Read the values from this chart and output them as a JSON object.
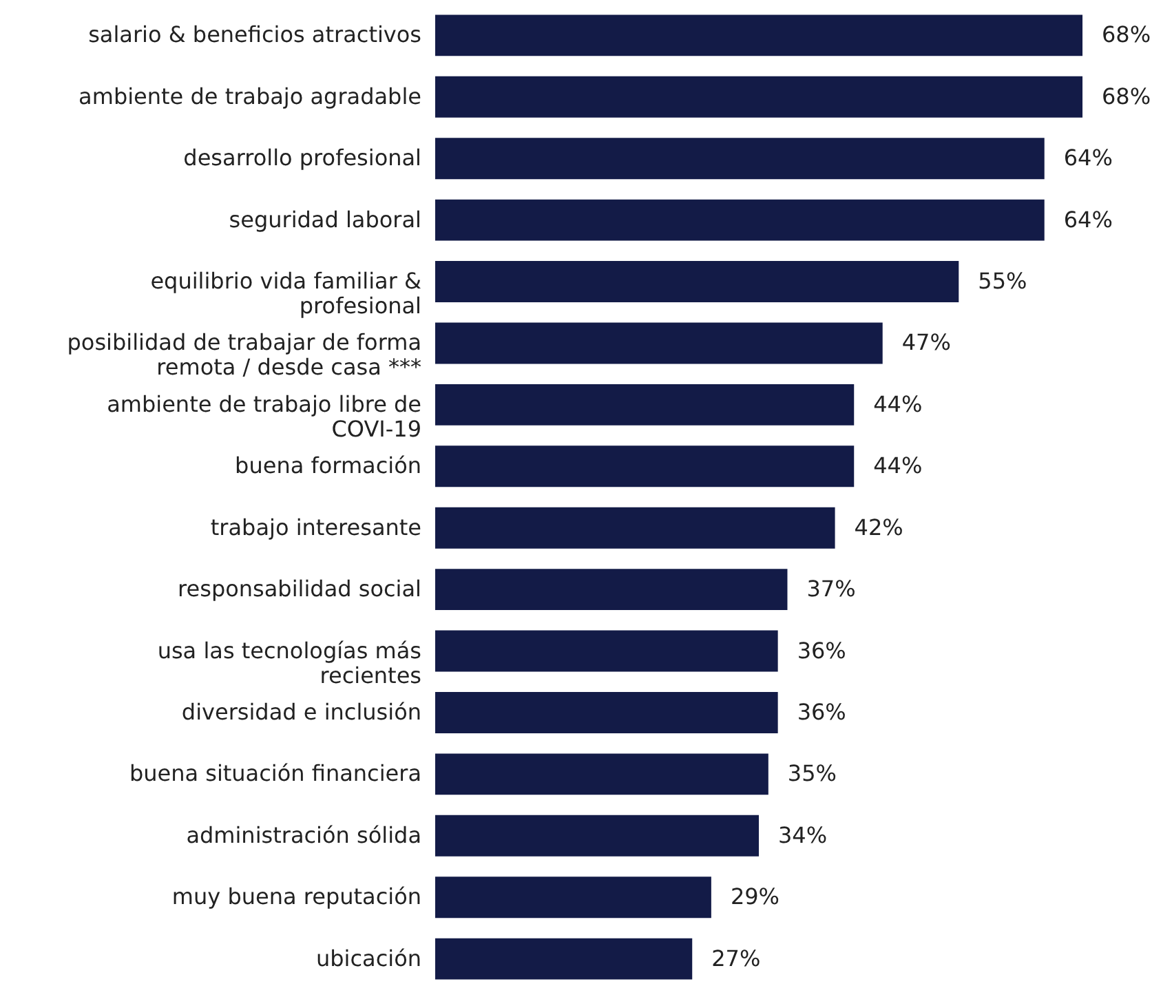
{
  "chart_data": {
    "type": "bar",
    "orientation": "horizontal",
    "categories": [
      "salario & beneficios atractivos",
      "ambiente de trabajo agradable",
      "desarrollo profesional",
      "seguridad laboral",
      "equilibrio vida familiar & profesional",
      "posibilidad de trabajar de forma remota / desde casa ***",
      "ambiente de trabajo libre de COVI-19",
      "buena formación",
      "trabajo interesante",
      "responsabilidad social",
      "usa las tecnologías más recientes",
      "diversidad e inclusión",
      "buena situación financiera",
      "administración sólida",
      "muy buena reputación",
      "ubicación"
    ],
    "values": [
      68,
      68,
      64,
      64,
      55,
      47,
      44,
      44,
      42,
      37,
      36,
      36,
      35,
      34,
      29,
      27
    ],
    "value_labels": [
      "68%",
      "68%",
      "64%",
      "64%",
      "55%",
      "47%",
      "44%",
      "44%",
      "42%",
      "37%",
      "36%",
      "36%",
      "35%",
      "34%",
      "29%",
      "27%"
    ],
    "color": "#131b47"
  }
}
